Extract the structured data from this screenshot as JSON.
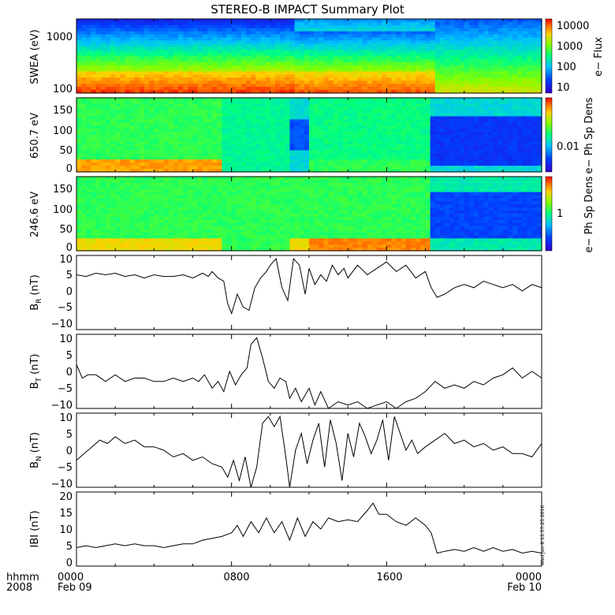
{
  "title": "STEREO-B IMPACT Summary Plot",
  "timestamp": "Wed Jun  8 13:57:25 2016",
  "x_axis": {
    "label_line1": "hhmm",
    "label_line2": "2008",
    "ticks": [
      "0000",
      "0800",
      "1600",
      "0000"
    ],
    "dates": [
      "Feb 09",
      "Feb 10"
    ]
  },
  "colors": {
    "trace": "#000000",
    "frame": "#000000",
    "background": "#ffffff"
  },
  "chart_data": [
    {
      "type": "heatmap",
      "ylabel": "SWEA (eV)",
      "yscale": "log",
      "ylim": [
        90,
        2000
      ],
      "y_ticks": [
        "100",
        "1000"
      ],
      "colorbar": {
        "label": "e− Flux",
        "scale": "log",
        "ticks": [
          "10000",
          "1000",
          "100",
          "10"
        ]
      },
      "description_segments": [
        {
          "x": [
            0,
            12.5
          ],
          "state": "high flux, red band near 100-200 eV"
        },
        {
          "x": [
            12.5,
            18.5
          ],
          "state": "high flux continues, slightly reduced"
        },
        {
          "x": [
            18.5,
            24
          ],
          "state": "lower flux, green/yellow at low energy"
        }
      ]
    },
    {
      "type": "heatmap",
      "ylabel": "650.7 eV",
      "ylim": [
        0,
        180
      ],
      "y_ticks": [
        "0",
        "50",
        "100",
        "150"
      ],
      "colorbar": {
        "label": "e− Ph Sp Dens",
        "ticks": [
          "0.01"
        ]
      }
    },
    {
      "type": "heatmap",
      "ylabel": "246.6 eV",
      "ylim": [
        0,
        180
      ],
      "y_ticks": [
        "0",
        "50",
        "100",
        "150"
      ],
      "colorbar": {
        "label": "e− Ph Sp Dens",
        "ticks": [
          "1"
        ]
      }
    },
    {
      "type": "line",
      "ylabel_main": "B",
      "ylabel_sub": "R",
      "ylabel_unit": "(nT)",
      "ylim": [
        -12,
        11
      ],
      "y_ticks": [
        "10",
        "5",
        "0",
        "−5",
        "−10"
      ],
      "x": [
        0,
        0.5,
        1,
        1.5,
        2,
        2.5,
        3,
        3.5,
        4,
        4.5,
        5,
        5.5,
        6,
        6.5,
        6.8,
        7,
        7.3,
        7.6,
        7.8,
        8,
        8.3,
        8.6,
        8.9,
        9.2,
        9.5,
        9.8,
        10,
        10.3,
        10.6,
        10.9,
        11.2,
        11.5,
        11.8,
        12,
        12.3,
        12.6,
        12.9,
        13.2,
        13.5,
        13.8,
        14,
        14.5,
        15,
        15.5,
        16,
        16.5,
        17,
        17.5,
        18,
        18.3,
        18.6,
        19,
        19.5,
        20,
        20.5,
        21,
        21.5,
        22,
        22.5,
        23,
        23.5,
        24
      ],
      "y": [
        5,
        4.5,
        5.5,
        5,
        5.5,
        4.5,
        5,
        4,
        5,
        4.5,
        4.5,
        5,
        4,
        5.5,
        4.5,
        6,
        4,
        3,
        -4,
        -7,
        -1,
        -5,
        -6,
        1,
        4,
        6,
        8,
        10,
        1,
        -3,
        10,
        8,
        -1,
        7,
        2,
        5,
        3,
        8,
        5,
        7,
        4,
        8,
        5,
        7,
        9,
        6,
        8,
        4,
        6,
        1,
        -2,
        -1,
        1,
        2,
        1,
        3,
        2,
        1,
        2,
        0,
        2,
        1
      ]
    },
    {
      "type": "line",
      "ylabel_main": "B",
      "ylabel_sub": "T",
      "ylabel_unit": "(nT)",
      "ylim": [
        -11,
        11
      ],
      "y_ticks": [
        "10",
        "5",
        "0",
        "−5",
        "−10"
      ],
      "x": [
        0,
        0.3,
        0.6,
        1,
        1.5,
        2,
        2.5,
        3,
        3.5,
        4,
        4.5,
        5,
        5.5,
        6,
        6.3,
        6.6,
        7,
        7.3,
        7.6,
        7.9,
        8.2,
        8.5,
        8.8,
        9,
        9.3,
        9.6,
        9.9,
        10.2,
        10.5,
        10.8,
        11,
        11.3,
        11.6,
        12,
        12.3,
        12.6,
        13,
        13.5,
        14,
        14.5,
        15,
        15.5,
        16,
        16.5,
        17,
        17.5,
        18,
        18.5,
        19,
        19.5,
        20,
        20.5,
        21,
        21.5,
        22,
        22.5,
        23,
        23.5,
        24
      ],
      "y": [
        2,
        -2,
        -1,
        -1,
        -3,
        -1,
        -3,
        -2,
        -2,
        -3,
        -3,
        -2,
        -3,
        -2,
        -3,
        -1,
        -5,
        -3,
        -6,
        0,
        -4,
        -1,
        1,
        8,
        10,
        4,
        -3,
        -5,
        -2,
        -3,
        -8,
        -5,
        -9,
        -5,
        -10,
        -6,
        -11,
        -9,
        -10,
        -9,
        -11,
        -10,
        -9,
        -11,
        -9,
        -8,
        -6,
        -3,
        -5,
        -4,
        -5,
        -3,
        -4,
        -2,
        -1,
        1,
        -2,
        0,
        -2
      ]
    },
    {
      "type": "line",
      "ylabel_main": "B",
      "ylabel_sub": "N",
      "ylabel_unit": "(nT)",
      "ylim": [
        -11,
        11
      ],
      "y_ticks": [
        "10",
        "5",
        "0",
        "−5",
        "−10"
      ],
      "x": [
        0,
        0.4,
        0.8,
        1.2,
        1.6,
        2,
        2.5,
        3,
        3.5,
        4,
        4.5,
        5,
        5.5,
        6,
        6.5,
        7,
        7.5,
        7.8,
        8.1,
        8.4,
        8.7,
        9,
        9.3,
        9.6,
        9.9,
        10.2,
        10.5,
        10.8,
        11,
        11.3,
        11.6,
        11.9,
        12.2,
        12.5,
        12.8,
        13.1,
        13.4,
        13.7,
        14,
        14.3,
        14.6,
        14.9,
        15.2,
        15.5,
        15.8,
        16.1,
        16.4,
        16.7,
        17,
        17.3,
        17.6,
        18,
        18.5,
        19,
        19.5,
        20,
        20.5,
        21,
        21.5,
        22,
        22.5,
        23,
        23.5,
        24
      ],
      "y": [
        -3,
        -1,
        1,
        3,
        2,
        4,
        2,
        3,
        1,
        1,
        0,
        -2,
        -1,
        -3,
        -2,
        -4,
        -5,
        -8,
        -3,
        -9,
        -2,
        -11,
        -5,
        8,
        10,
        7,
        10,
        -2,
        -11,
        0,
        5,
        -4,
        3,
        8,
        -5,
        9,
        2,
        -9,
        5,
        -2,
        8,
        4,
        -1,
        3,
        9,
        -3,
        10,
        5,
        0,
        3,
        -1,
        1,
        3,
        5,
        2,
        3,
        1,
        2,
        0,
        1,
        -1,
        -1,
        -2,
        2
      ]
    },
    {
      "type": "line",
      "ylabel": "IBI (nT)",
      "ylim": [
        0,
        20
      ],
      "y_ticks": [
        "20",
        "15",
        "10",
        "5",
        "0"
      ],
      "x": [
        0,
        0.5,
        1,
        1.5,
        2,
        2.5,
        3,
        3.5,
        4,
        4.5,
        5,
        5.5,
        6,
        6.5,
        7,
        7.5,
        8,
        8.3,
        8.6,
        9,
        9.4,
        9.8,
        10.2,
        10.6,
        11,
        11.4,
        11.8,
        12.2,
        12.6,
        13,
        13.5,
        14,
        14.5,
        15,
        15.3,
        15.6,
        16,
        16.5,
        17,
        17.5,
        18,
        18.3,
        18.6,
        19,
        19.5,
        20,
        20.5,
        21,
        21.5,
        22,
        22.5,
        23,
        23.5,
        24
      ],
      "y": [
        5,
        5.5,
        5,
        5.5,
        6,
        5.5,
        6,
        5.5,
        5.5,
        5,
        5.5,
        6,
        6,
        7,
        7.5,
        8,
        9,
        11,
        8,
        12,
        9,
        13,
        9,
        12,
        7,
        13,
        8,
        12,
        10,
        13,
        12,
        12.5,
        12,
        15,
        17,
        14,
        14,
        12,
        11,
        13,
        11,
        9,
        3.5,
        4,
        4.5,
        4,
        5,
        4,
        5,
        4,
        4.5,
        3.5,
        4,
        3.5
      ]
    }
  ]
}
